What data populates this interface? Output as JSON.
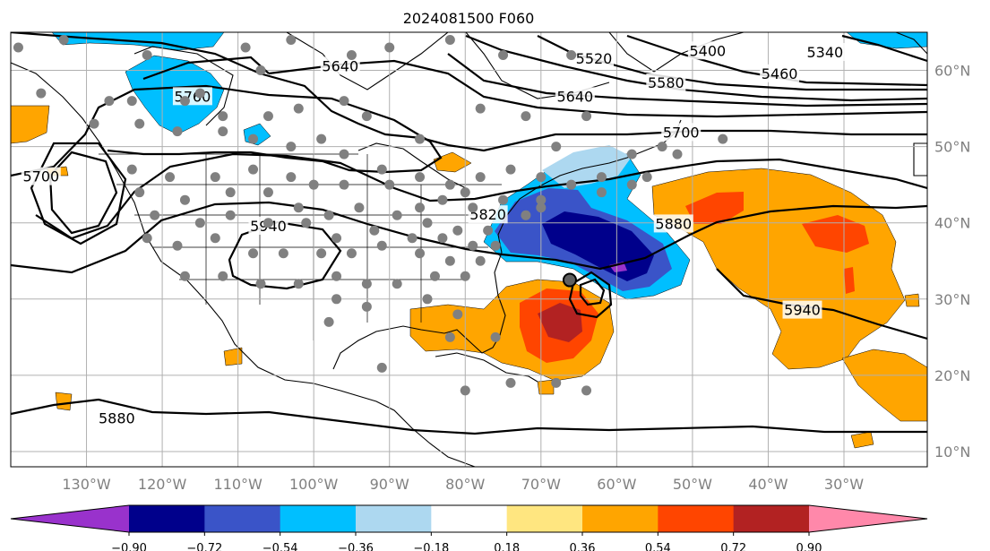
{
  "title": "2024081500 F060",
  "map": {
    "lon_range": [
      -140,
      -19
    ],
    "lat_range": [
      8,
      65
    ],
    "lon_ticks": [
      {
        "lon": -130,
        "label": "130°W"
      },
      {
        "lon": -120,
        "label": "120°W"
      },
      {
        "lon": -110,
        "label": "110°W"
      },
      {
        "lon": -100,
        "label": "100°W"
      },
      {
        "lon": -90,
        "label": "90°W"
      },
      {
        "lon": -80,
        "label": "80°W"
      },
      {
        "lon": -70,
        "label": "70°W"
      },
      {
        "lon": -60,
        "label": "60°W"
      },
      {
        "lon": -50,
        "label": "50°W"
      },
      {
        "lon": -40,
        "label": "40°W"
      },
      {
        "lon": -30,
        "label": "30°W"
      }
    ],
    "lat_ticks": [
      {
        "lat": 10,
        "label": "10°N"
      },
      {
        "lat": 20,
        "label": "20°N"
      },
      {
        "lat": 30,
        "label": "30°N"
      },
      {
        "lat": 40,
        "label": "40°N"
      },
      {
        "lat": 50,
        "label": "50°N"
      },
      {
        "lat": 60,
        "label": "60°N"
      }
    ],
    "contour_labels": [
      {
        "text": "5640",
        "lon": -96.5,
        "lat": 60.5
      },
      {
        "text": "5520",
        "lon": -63,
        "lat": 61.5
      },
      {
        "text": "5400",
        "lon": -48,
        "lat": 62.5
      },
      {
        "text": "5340",
        "lon": -32.5,
        "lat": 62.3
      },
      {
        "text": "5460",
        "lon": -38.5,
        "lat": 59.5
      },
      {
        "text": "5580",
        "lon": -53.5,
        "lat": 58.3
      },
      {
        "text": "5640",
        "lon": -65.5,
        "lat": 56.5
      },
      {
        "text": "5760",
        "lon": -116,
        "lat": 56.5
      },
      {
        "text": "5700",
        "lon": -51.5,
        "lat": 51.8
      },
      {
        "text": "5700",
        "lon": -136,
        "lat": 46
      },
      {
        "text": "5940",
        "lon": -106,
        "lat": 39.5
      },
      {
        "text": "5820",
        "lon": -77,
        "lat": 41
      },
      {
        "text": "5880",
        "lon": -52.5,
        "lat": 39.8
      },
      {
        "text": "5940",
        "lon": -35.5,
        "lat": 28.5
      },
      {
        "text": "5880",
        "lon": -126,
        "lat": 14.3
      }
    ],
    "station_marker_color": "#808080",
    "low_center": {
      "lon": -66.2,
      "lat": 32.5
    }
  },
  "colorbar": {
    "colors": [
      "#9932cc",
      "#00008b",
      "#3a54c8",
      "#00bfff",
      "#add8f0",
      "#ffffff",
      "#ffe680",
      "#ffa500",
      "#ff4500",
      "#b22222",
      "#ff88aa"
    ],
    "labels": [
      "−0.90",
      "−0.72",
      "−0.54",
      "−0.36",
      "−0.18",
      "0.18",
      "0.36",
      "0.54",
      "0.72",
      "0.90"
    ]
  }
}
